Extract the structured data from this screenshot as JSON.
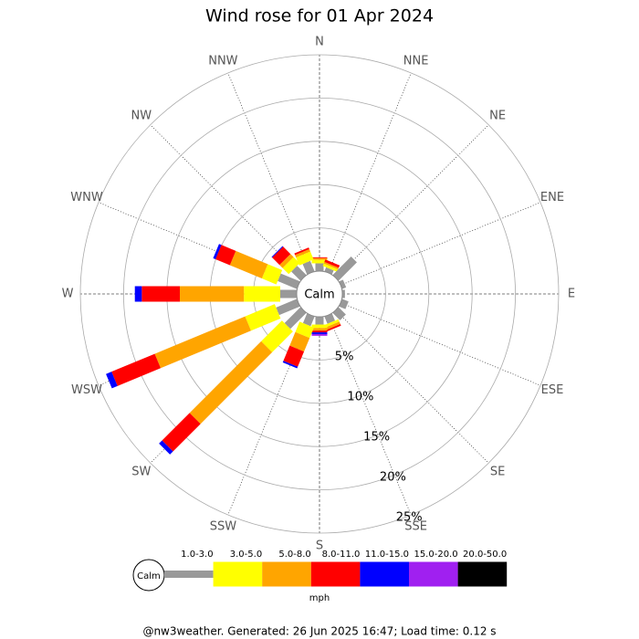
{
  "chart_data": {
    "type": "wind_rose",
    "title": "Wind rose for 01 Apr 2024",
    "categories": [
      "N",
      "NNE",
      "NE",
      "ENE",
      "E",
      "ESE",
      "SE",
      "SSE",
      "S",
      "SSW",
      "SW",
      "WSW",
      "W",
      "WNW",
      "NW",
      "NNW"
    ],
    "series": [
      {
        "name": "1.0-3.0",
        "color": "#999999",
        "values": [
          0.9,
          0.5,
          3.0,
          0.5,
          0.3,
          0.8,
          1.2,
          0.9,
          0.9,
          1.2,
          2.6,
          2.6,
          1.9,
          2.4,
          1.5,
          1.3
        ]
      },
      {
        "name": "3.0-5.0",
        "color": "#ffff00",
        "values": [
          0.4,
          0.3,
          0,
          0,
          0,
          0,
          0,
          0.3,
          0.4,
          1.3,
          3.4,
          3.7,
          4.2,
          1.8,
          1.0,
          1.0
        ]
      },
      {
        "name": "5.0-8.0",
        "color": "#ffa500",
        "values": [
          0.2,
          0.2,
          0,
          0,
          0,
          0,
          0,
          0.3,
          0.3,
          1.7,
          11.7,
          11.3,
          7.4,
          4.0,
          0.5,
          0.3
        ]
      },
      {
        "name": "8.0-11.0",
        "color": "#ff0000",
        "values": [
          0.1,
          0.3,
          0,
          0,
          0,
          0,
          0,
          0.2,
          0.2,
          1.9,
          4.5,
          5.4,
          4.4,
          1.8,
          1.2,
          0.2
        ]
      },
      {
        "name": "11.0-15.0",
        "color": "#0000ff",
        "values": [
          0,
          0,
          0,
          0,
          0,
          0,
          0,
          0,
          0.2,
          0.2,
          0.5,
          0.7,
          0.8,
          0.3,
          0.1,
          0
        ]
      },
      {
        "name": "15.0-20.0",
        "color": "#a020f0",
        "values": [
          0,
          0,
          0,
          0,
          0,
          0,
          0,
          0,
          0.2,
          0,
          0,
          0,
          0,
          0,
          0,
          0
        ]
      },
      {
        "name": "20.0-50.0",
        "color": "#000000",
        "values": [
          0,
          0,
          0,
          0,
          0,
          0,
          0,
          0,
          0,
          0,
          0,
          0,
          0,
          0,
          0,
          0
        ]
      }
    ],
    "rlim": [
      0,
      25
    ],
    "rticks": [
      {
        "value": 5,
        "label": "5%"
      },
      {
        "value": 10,
        "label": "10%"
      },
      {
        "value": 15,
        "label": "15%"
      },
      {
        "value": 20,
        "label": "20%"
      },
      {
        "value": 25,
        "label": "25%"
      }
    ],
    "calm_label": "Calm",
    "unit": "mph",
    "grid": true
  },
  "footer": "@nw3weather. Generated: 26 Jun 2025 16:47; Load time: 0.12 s"
}
